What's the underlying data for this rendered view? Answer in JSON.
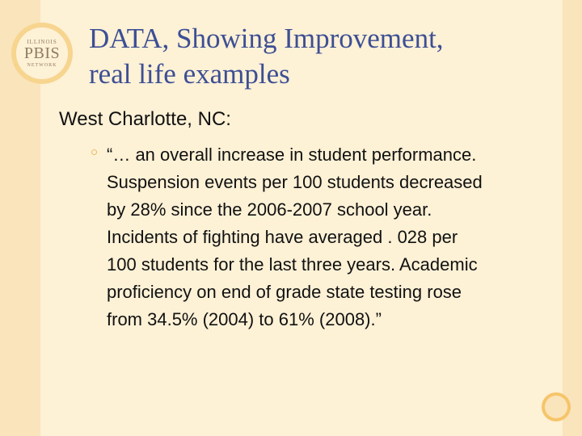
{
  "logo": {
    "top_text": "ILLINOIS",
    "main_text": "PBIS",
    "bottom_text": "NETWORK"
  },
  "slide": {
    "title_lines": [
      "DATA, Showing Improvement,",
      "real life examples"
    ],
    "subheading": "West Charlotte, NC:",
    "bullet_marker": "○",
    "bullet_lines": [
      "“… an overall increase in student performance.",
      "Suspension events per 100 students decreased",
      "by 28% since the 2006-2007 school year.",
      "Incidents of fighting have averaged . 028 per",
      "100 students for the last three years. Academic",
      "proficiency on end of grade state testing rose",
      "from 34.5% (2004) to 61% (2008).”"
    ]
  },
  "colors": {
    "background": "#fdf1d6",
    "side_band": "#fae4bb",
    "title": "#3d4f94",
    "bullet": "#e3a32e",
    "accent_circle": "#f6c56a"
  }
}
